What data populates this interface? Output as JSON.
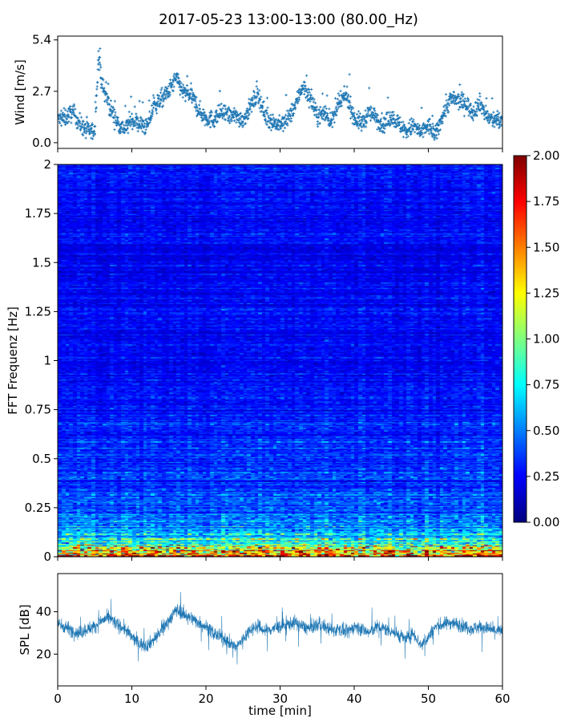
{
  "figure": {
    "title": "2017-05-23 13:00-13:00 (80.00_Hz)"
  },
  "chart_data": [
    {
      "type": "scatter",
      "panel": "wind",
      "ylabel": "Wind [m/s]",
      "xlabel": "",
      "xlim": [
        0,
        60
      ],
      "ylim": [
        -0.3,
        5.6
      ],
      "yticks": [
        0.0,
        2.7,
        5.4
      ],
      "ytick_labels": [
        "0.0",
        "2.7",
        "5.4"
      ],
      "marker": "plus",
      "color": "#1f77b4",
      "x": [
        0,
        1,
        2,
        3,
        4,
        5,
        5.5,
        6,
        7,
        8,
        9,
        10,
        11,
        12,
        13,
        14,
        15,
        16,
        17,
        18,
        19,
        20,
        21,
        22,
        23,
        24,
        25,
        26,
        27,
        28,
        29,
        30,
        31,
        32,
        33,
        34,
        35,
        36,
        37,
        38,
        39,
        40,
        41,
        42,
        43,
        44,
        45,
        46,
        47,
        48,
        49,
        50,
        51,
        52,
        53,
        54,
        55,
        56,
        57,
        58,
        59,
        60
      ],
      "y": [
        1.2,
        1.3,
        1.6,
        1.0,
        0.6,
        0.6,
        4.6,
        3.0,
        1.9,
        1.1,
        0.7,
        1.2,
        1.0,
        0.8,
        1.9,
        2.3,
        2.7,
        3.4,
        2.6,
        2.5,
        1.7,
        1.3,
        1.2,
        1.6,
        1.4,
        1.4,
        1.2,
        1.9,
        2.6,
        1.4,
        1.1,
        0.9,
        1.2,
        1.9,
        3.0,
        2.4,
        1.4,
        1.6,
        1.1,
        2.1,
        2.5,
        1.3,
        1.0,
        1.6,
        1.3,
        0.9,
        1.4,
        1.0,
        0.6,
        0.9,
        0.5,
        0.9,
        0.4,
        1.5,
        2.3,
        2.2,
        2.1,
        1.6,
        2.1,
        1.3,
        1.2,
        1.1
      ]
    },
    {
      "type": "heatmap",
      "panel": "spectrogram",
      "ylabel": "FFT Frequenz [Hz]",
      "xlabel": "",
      "xlim": [
        0,
        60
      ],
      "ylim": [
        0,
        2
      ],
      "yticks": [
        0,
        0.25,
        0.5,
        0.75,
        1,
        1.25,
        1.5,
        1.75,
        2
      ],
      "ytick_labels": [
        "0",
        "0.25",
        "0.5",
        "0.75",
        "1",
        "1.25",
        "1.5",
        "1.75",
        "2"
      ],
      "colormap": "jet",
      "clim": [
        0.0,
        2.0
      ],
      "colorbar_ticks": [
        "0.00",
        "0.25",
        "0.50",
        "0.75",
        "1.00",
        "1.25",
        "1.50",
        "1.75",
        "2.00"
      ],
      "mean_level_by_frequency": {
        "frequency": [
          0.0,
          0.05,
          0.1,
          0.15,
          0.2,
          0.25,
          0.5,
          0.75,
          1.0,
          1.25,
          1.5,
          1.75,
          2.0
        ],
        "level": [
          1.6,
          1.0,
          0.65,
          0.5,
          0.45,
          0.4,
          0.35,
          0.3,
          0.25,
          0.25,
          0.22,
          0.25,
          0.28
        ]
      }
    },
    {
      "type": "line",
      "panel": "spl",
      "ylabel": "SPL [dB]",
      "xlabel": "time [min]",
      "xlim": [
        0,
        60
      ],
      "ylim": [
        5,
        58
      ],
      "yticks": [
        20,
        40
      ],
      "ytick_labels": [
        "20",
        "40"
      ],
      "xticks": [
        0,
        10,
        20,
        30,
        40,
        50,
        60
      ],
      "xtick_labels": [
        "0",
        "10",
        "20",
        "30",
        "40",
        "50",
        "60"
      ],
      "color": "#1f77b4",
      "x": [
        0,
        1,
        2,
        3,
        4,
        5,
        6,
        7,
        8,
        9,
        10,
        11,
        12,
        13,
        14,
        15,
        16,
        17,
        18,
        19,
        20,
        21,
        22,
        23,
        24,
        25,
        26,
        27,
        28,
        29,
        30,
        31,
        32,
        33,
        34,
        35,
        36,
        37,
        38,
        39,
        40,
        41,
        42,
        43,
        44,
        45,
        46,
        47,
        48,
        49,
        50,
        51,
        52,
        53,
        54,
        55,
        56,
        57,
        58,
        59,
        60
      ],
      "y": [
        34,
        33,
        31,
        30,
        32,
        33,
        36,
        37,
        34,
        32,
        28,
        25,
        24,
        27,
        31,
        36,
        41,
        39,
        37,
        35,
        33,
        30,
        28,
        26,
        23,
        27,
        32,
        33,
        31,
        32,
        33,
        34,
        35,
        33,
        32,
        34,
        33,
        31,
        32,
        30,
        33,
        32,
        30,
        33,
        32,
        31,
        29,
        27,
        30,
        24,
        28,
        33,
        34,
        35,
        34,
        33,
        32,
        33,
        32,
        31,
        31
      ]
    }
  ]
}
